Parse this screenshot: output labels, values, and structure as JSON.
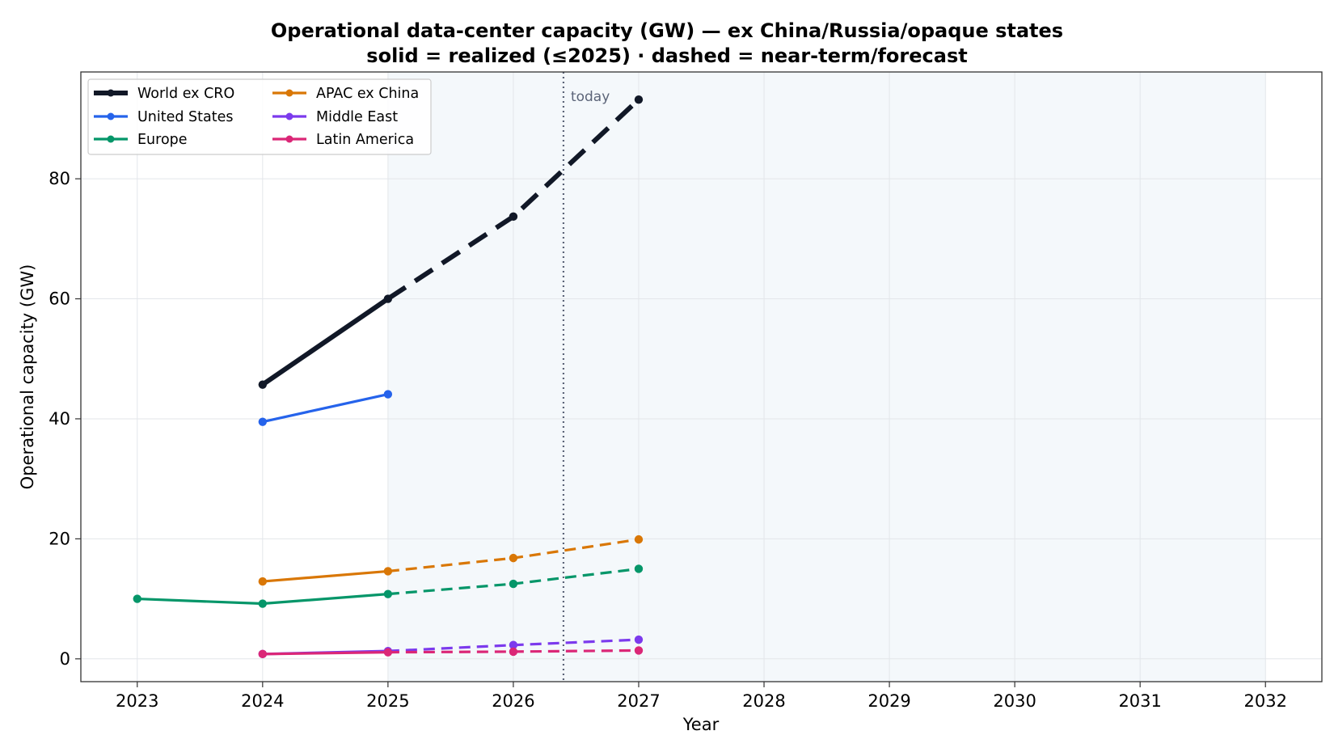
{
  "chart_data": {
    "type": "line",
    "title": "Operational data-center capacity (GW) — ex China/Russia/opaque states",
    "subtitle": "solid = realized (≤2025) · dashed = near-term/forecast",
    "xlabel": "Year",
    "ylabel": "Operational capacity (GW)",
    "xlim": [
      2022.55,
      2032.45
    ],
    "ylim": [
      -3.8,
      97.8
    ],
    "x_ticks": [
      2023,
      2024,
      2025,
      2026,
      2027,
      2028,
      2029,
      2030,
      2031,
      2032
    ],
    "y_ticks": [
      0,
      20,
      40,
      60,
      80
    ],
    "grid": true,
    "legend_position": "top-left",
    "legend_columns": 2,
    "realized_until": 2025,
    "shaded_region": [
      2025,
      2032
    ],
    "shade_color": "#f4f8fb",
    "today_line": {
      "x": 2026.4,
      "label": "today",
      "color": "#5b6478"
    },
    "series": [
      {
        "name": "World ex CRO",
        "color": "#111827",
        "bold": true,
        "x": [
          2024,
          2025,
          2026,
          2027
        ],
        "values": [
          45.7,
          60.0,
          73.7,
          93.2
        ]
      },
      {
        "name": "United States",
        "color": "#2563eb",
        "x": [
          2024,
          2025
        ],
        "values": [
          39.5,
          44.1
        ]
      },
      {
        "name": "Europe",
        "color": "#059669",
        "x": [
          2023,
          2024,
          2025,
          2026,
          2027
        ],
        "values": [
          10.0,
          9.2,
          10.8,
          12.5,
          15.0
        ]
      },
      {
        "name": "APAC ex China",
        "color": "#d97706",
        "x": [
          2024,
          2025,
          2026,
          2027
        ],
        "values": [
          12.9,
          14.6,
          16.8,
          19.9
        ]
      },
      {
        "name": "Middle East",
        "color": "#7c3aed",
        "x": [
          2024,
          2025,
          2026,
          2027
        ],
        "values": [
          0.8,
          1.3,
          2.3,
          3.2
        ]
      },
      {
        "name": "Latin America",
        "color": "#db2777",
        "x": [
          2024,
          2025,
          2026,
          2027
        ],
        "values": [
          0.8,
          1.1,
          1.2,
          1.4
        ]
      }
    ]
  }
}
